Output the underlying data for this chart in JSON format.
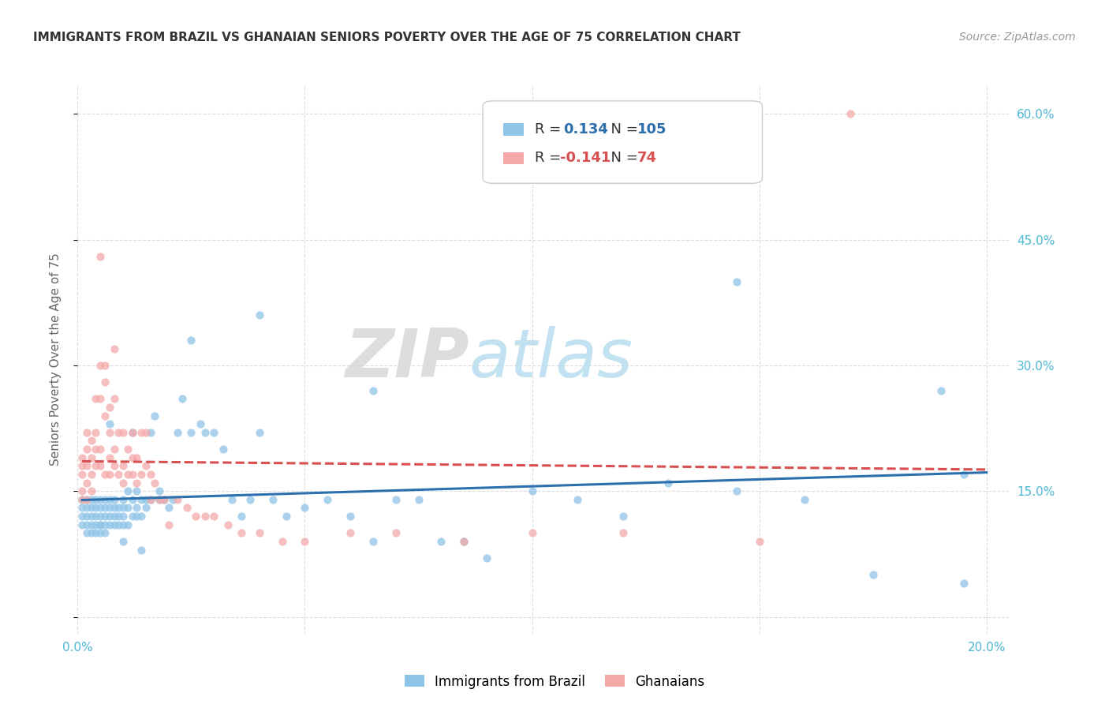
{
  "title": "IMMIGRANTS FROM BRAZIL VS GHANAIAN SENIORS POVERTY OVER THE AGE OF 75 CORRELATION CHART",
  "source": "Source: ZipAtlas.com",
  "ylabel": "Seniors Poverty Over the Age of 75",
  "legend_bottom": [
    "Immigrants from Brazil",
    "Ghanaians"
  ],
  "r_brazil": 0.134,
  "n_brazil": 105,
  "r_ghana": -0.141,
  "n_ghana": 74,
  "xlim": [
    0.0,
    0.205
  ],
  "ylim": [
    -0.02,
    0.635
  ],
  "yticks_right": [
    0.15,
    0.3,
    0.45,
    0.6
  ],
  "ytick_labels_right": [
    "15.0%",
    "30.0%",
    "45.0%",
    "60.0%"
  ],
  "color_brazil": "#8ec4e8",
  "color_ghana": "#f4a9a8",
  "color_trendline_brazil": "#2c6fad",
  "color_trendline_ghana": "#d94f4f",
  "watermark_zip": "ZIP",
  "watermark_atlas": "atlas",
  "background_color": "#ffffff",
  "grid_color": "#dddddd",
  "title_color": "#333333",
  "axis_color": "#4db8d4",
  "brazil_scatter_x": [
    0.001,
    0.001,
    0.001,
    0.001,
    0.002,
    0.002,
    0.002,
    0.002,
    0.002,
    0.003,
    0.003,
    0.003,
    0.003,
    0.003,
    0.004,
    0.004,
    0.004,
    0.004,
    0.004,
    0.005,
    0.005,
    0.005,
    0.005,
    0.005,
    0.006,
    0.006,
    0.006,
    0.006,
    0.006,
    0.007,
    0.007,
    0.007,
    0.007,
    0.008,
    0.008,
    0.008,
    0.008,
    0.009,
    0.009,
    0.009,
    0.01,
    0.01,
    0.01,
    0.01,
    0.011,
    0.011,
    0.011,
    0.012,
    0.012,
    0.012,
    0.013,
    0.013,
    0.013,
    0.014,
    0.014,
    0.015,
    0.015,
    0.016,
    0.016,
    0.017,
    0.018,
    0.019,
    0.02,
    0.021,
    0.022,
    0.023,
    0.025,
    0.027,
    0.028,
    0.03,
    0.032,
    0.034,
    0.036,
    0.038,
    0.04,
    0.043,
    0.046,
    0.05,
    0.055,
    0.06,
    0.065,
    0.07,
    0.075,
    0.08,
    0.09,
    0.1,
    0.11,
    0.12,
    0.13,
    0.145,
    0.16,
    0.175,
    0.19,
    0.195,
    0.195,
    0.145,
    0.085,
    0.065,
    0.04,
    0.025,
    0.018,
    0.014,
    0.01,
    0.007,
    0.005
  ],
  "brazil_scatter_y": [
    0.13,
    0.12,
    0.14,
    0.11,
    0.13,
    0.12,
    0.14,
    0.11,
    0.1,
    0.14,
    0.12,
    0.11,
    0.13,
    0.1,
    0.13,
    0.12,
    0.14,
    0.11,
    0.1,
    0.13,
    0.12,
    0.14,
    0.11,
    0.1,
    0.13,
    0.12,
    0.11,
    0.14,
    0.1,
    0.14,
    0.13,
    0.12,
    0.11,
    0.14,
    0.13,
    0.12,
    0.11,
    0.13,
    0.12,
    0.11,
    0.14,
    0.13,
    0.12,
    0.11,
    0.15,
    0.13,
    0.11,
    0.22,
    0.14,
    0.12,
    0.15,
    0.13,
    0.12,
    0.14,
    0.12,
    0.14,
    0.13,
    0.22,
    0.14,
    0.24,
    0.15,
    0.14,
    0.13,
    0.14,
    0.22,
    0.26,
    0.33,
    0.23,
    0.22,
    0.22,
    0.2,
    0.14,
    0.12,
    0.14,
    0.22,
    0.14,
    0.12,
    0.13,
    0.14,
    0.12,
    0.09,
    0.14,
    0.14,
    0.09,
    0.07,
    0.15,
    0.14,
    0.12,
    0.16,
    0.15,
    0.14,
    0.05,
    0.27,
    0.17,
    0.04,
    0.4,
    0.09,
    0.27,
    0.36,
    0.22,
    0.14,
    0.08,
    0.09,
    0.23,
    0.11
  ],
  "ghana_scatter_x": [
    0.001,
    0.001,
    0.001,
    0.001,
    0.001,
    0.002,
    0.002,
    0.002,
    0.002,
    0.002,
    0.003,
    0.003,
    0.003,
    0.003,
    0.004,
    0.004,
    0.004,
    0.004,
    0.005,
    0.005,
    0.005,
    0.005,
    0.005,
    0.006,
    0.006,
    0.006,
    0.006,
    0.007,
    0.007,
    0.007,
    0.007,
    0.008,
    0.008,
    0.008,
    0.008,
    0.009,
    0.009,
    0.01,
    0.01,
    0.01,
    0.011,
    0.011,
    0.012,
    0.012,
    0.012,
    0.013,
    0.013,
    0.014,
    0.014,
    0.015,
    0.015,
    0.016,
    0.016,
    0.017,
    0.018,
    0.019,
    0.02,
    0.022,
    0.024,
    0.026,
    0.028,
    0.03,
    0.033,
    0.036,
    0.04,
    0.045,
    0.05,
    0.06,
    0.07,
    0.085,
    0.1,
    0.12,
    0.15,
    0.17
  ],
  "ghana_scatter_y": [
    0.17,
    0.15,
    0.19,
    0.18,
    0.14,
    0.2,
    0.18,
    0.22,
    0.16,
    0.14,
    0.19,
    0.17,
    0.21,
    0.15,
    0.2,
    0.18,
    0.26,
    0.22,
    0.26,
    0.3,
    0.43,
    0.2,
    0.18,
    0.28,
    0.24,
    0.3,
    0.17,
    0.25,
    0.22,
    0.17,
    0.19,
    0.26,
    0.32,
    0.18,
    0.2,
    0.22,
    0.17,
    0.22,
    0.18,
    0.16,
    0.2,
    0.17,
    0.19,
    0.22,
    0.17,
    0.16,
    0.19,
    0.17,
    0.22,
    0.22,
    0.18,
    0.14,
    0.17,
    0.16,
    0.14,
    0.14,
    0.11,
    0.14,
    0.13,
    0.12,
    0.12,
    0.12,
    0.11,
    0.1,
    0.1,
    0.09,
    0.09,
    0.1,
    0.1,
    0.09,
    0.1,
    0.1,
    0.09,
    0.6
  ]
}
